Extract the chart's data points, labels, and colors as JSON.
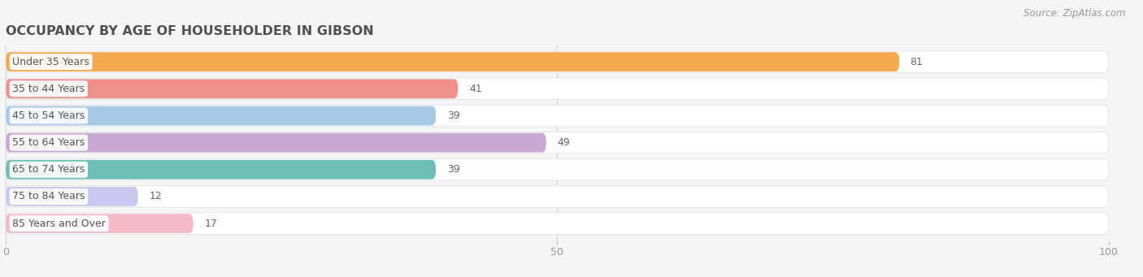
{
  "title": "OCCUPANCY BY AGE OF HOUSEHOLDER IN GIBSON",
  "source": "Source: ZipAtlas.com",
  "categories": [
    "Under 35 Years",
    "35 to 44 Years",
    "45 to 54 Years",
    "55 to 64 Years",
    "65 to 74 Years",
    "75 to 84 Years",
    "85 Years and Over"
  ],
  "values": [
    81,
    41,
    39,
    49,
    39,
    12,
    17
  ],
  "bar_colors": [
    "#f5a94e",
    "#f0908a",
    "#a8c8e8",
    "#c9a8d4",
    "#6dbfb8",
    "#c8c8f0",
    "#f5b8c8"
  ],
  "xlim": [
    0,
    100
  ],
  "background_color": "#f5f5f5",
  "bar_bg_color": "#e8e8e8",
  "row_bg_color": "#ffffff",
  "title_color": "#505050",
  "label_color": "#555555",
  "tick_color": "#999999",
  "source_color": "#999999",
  "value_color": "#666666",
  "title_fontsize": 11.5,
  "label_fontsize": 9,
  "value_fontsize": 9,
  "tick_fontsize": 9
}
